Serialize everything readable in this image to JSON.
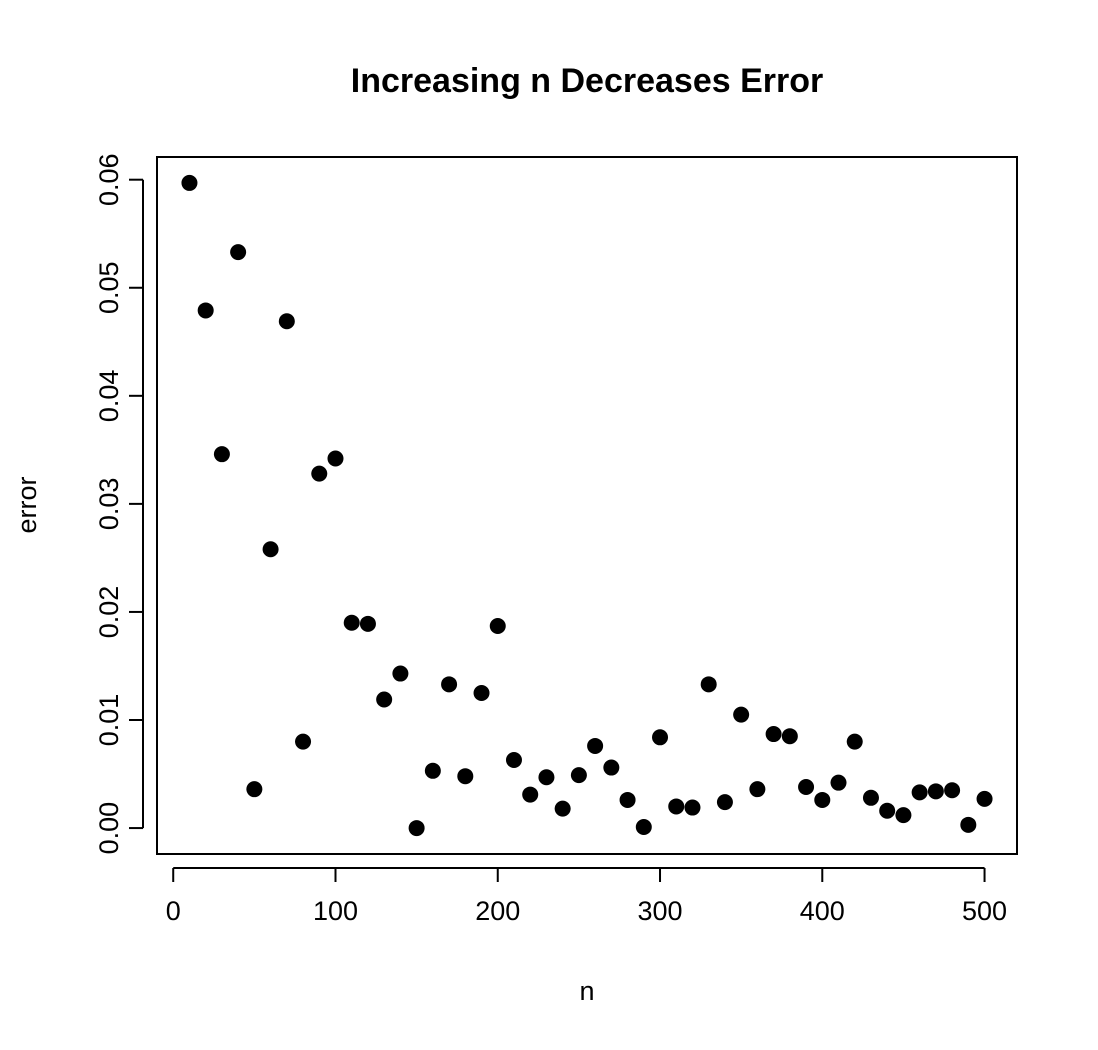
{
  "chart_data": {
    "type": "scatter",
    "title": "Increasing n Decreases Error",
    "xlabel": "n",
    "ylabel": "error",
    "xlim": [
      -10,
      520
    ],
    "ylim": [
      -0.0024,
      0.0621
    ],
    "xticks": [
      0,
      100,
      200,
      300,
      400,
      500
    ],
    "yticks": [
      0.0,
      0.01,
      0.02,
      0.03,
      0.04,
      0.05,
      0.06
    ],
    "xtick_labels": [
      "0",
      "100",
      "200",
      "300",
      "400",
      "500"
    ],
    "ytick_labels": [
      "0.00",
      "0.01",
      "0.02",
      "0.03",
      "0.04",
      "0.05",
      "0.06"
    ],
    "grid": false,
    "legend": "none",
    "marker_color": "#000000",
    "series": [
      {
        "x": [
          10,
          20,
          30,
          40,
          50,
          60,
          70,
          80,
          90,
          100,
          110,
          120,
          130,
          140,
          150,
          160,
          170,
          180,
          190,
          200,
          210,
          220,
          230,
          240,
          250,
          260,
          270,
          280,
          290,
          300,
          310,
          320,
          330,
          340,
          350,
          360,
          370,
          380,
          390,
          400,
          410,
          420,
          430,
          440,
          450,
          460,
          470,
          480,
          490,
          500
        ],
        "y": [
          0.0597,
          0.0479,
          0.0346,
          0.0533,
          0.0036,
          0.0258,
          0.0469,
          0.008,
          0.0328,
          0.0342,
          0.019,
          0.0189,
          0.0119,
          0.0143,
          0.0,
          0.0053,
          0.0133,
          0.0048,
          0.0125,
          0.0187,
          0.0063,
          0.0031,
          0.0047,
          0.0018,
          0.0049,
          0.0076,
          0.0056,
          0.0026,
          0.0001,
          0.0084,
          0.002,
          0.0019,
          0.0133,
          0.0024,
          0.0105,
          0.0036,
          0.0087,
          0.0085,
          0.0038,
          0.0026,
          0.0042,
          0.008,
          0.0028,
          0.0016,
          0.0012,
          0.0033,
          0.0034,
          0.0035,
          0.0003,
          0.0027
        ]
      }
    ]
  }
}
